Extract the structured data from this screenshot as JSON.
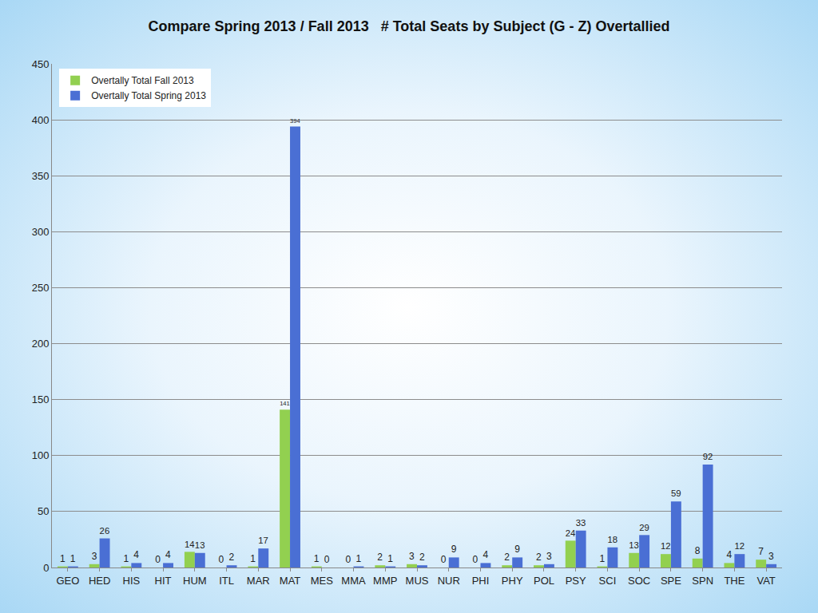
{
  "chart_data": {
    "type": "bar",
    "title": "Compare Spring 2013 / Fall 2013   # Total Seats by Subject (G - Z) Overtallied",
    "categories": [
      "GEO",
      "HED",
      "HIS",
      "HIT",
      "HUM",
      "ITL",
      "MAR",
      "MAT",
      "MES",
      "MMA",
      "MMP",
      "MUS",
      "NUR",
      "PHI",
      "PHY",
      "POL",
      "PSY",
      "SCI",
      "SOC",
      "SPE",
      "SPN",
      "THE",
      "VAT"
    ],
    "series": [
      {
        "name": "Overtally Total Fall 2013",
        "color": "#92d050",
        "values": [
          1,
          3,
          1,
          0,
          14,
          0,
          1,
          141,
          1,
          0,
          2,
          3,
          0,
          0,
          2,
          2,
          24,
          1,
          13,
          12,
          8,
          4,
          7
        ]
      },
      {
        "name": "Overtally Total Spring 2013",
        "color": "#4a6fd4",
        "values": [
          1,
          26,
          4,
          4,
          13,
          2,
          17,
          394,
          0,
          1,
          1,
          2,
          9,
          4,
          9,
          3,
          33,
          18,
          29,
          59,
          92,
          12,
          3
        ]
      }
    ],
    "ylim": [
      0,
      450
    ],
    "yticks": [
      0,
      50,
      100,
      150,
      200,
      250,
      300,
      350,
      400,
      450
    ],
    "grid": true,
    "legend": "top left",
    "data_labels": true
  }
}
